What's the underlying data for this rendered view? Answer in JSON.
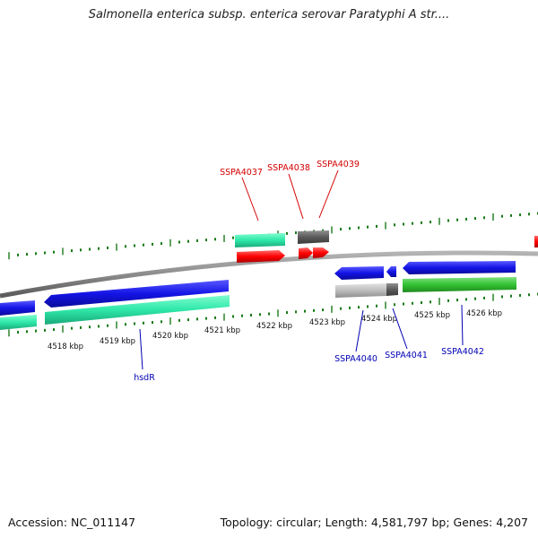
{
  "title": "Salmonella enterica subsp. enterica serovar Paratyphi A str....",
  "footer": {
    "accession": "Accession: NC_011147",
    "summary": "Topology: circular; Length: 4,581,797 bp; Genes: 4,207"
  },
  "colors": {
    "backbone": "#8c8c8c",
    "tick": "#1a7a1a",
    "forward_label": "#d40000",
    "reverse_label": "#0000b4",
    "red": "#ff0000",
    "blue": "#1414e6",
    "cyan": "#2ee8a8",
    "green": "#33c233",
    "darkgray": "#5a5a5a",
    "lightgray": "#bdbdbd"
  },
  "scale_labels": [
    "4518 kbp",
    "4519 kbp",
    "4520 kbp",
    "4521 kbp",
    "4522 kbp",
    "4523 kbp",
    "4524 kbp",
    "4525 kbp",
    "4526 kbp"
  ],
  "forward_gene_labels": [
    "SSPA4037",
    "SSPA4038",
    "SSPA4039"
  ],
  "reverse_gene_labels": [
    "hsdR",
    "SSPA4040",
    "SSPA4041",
    "SSPA4042"
  ]
}
